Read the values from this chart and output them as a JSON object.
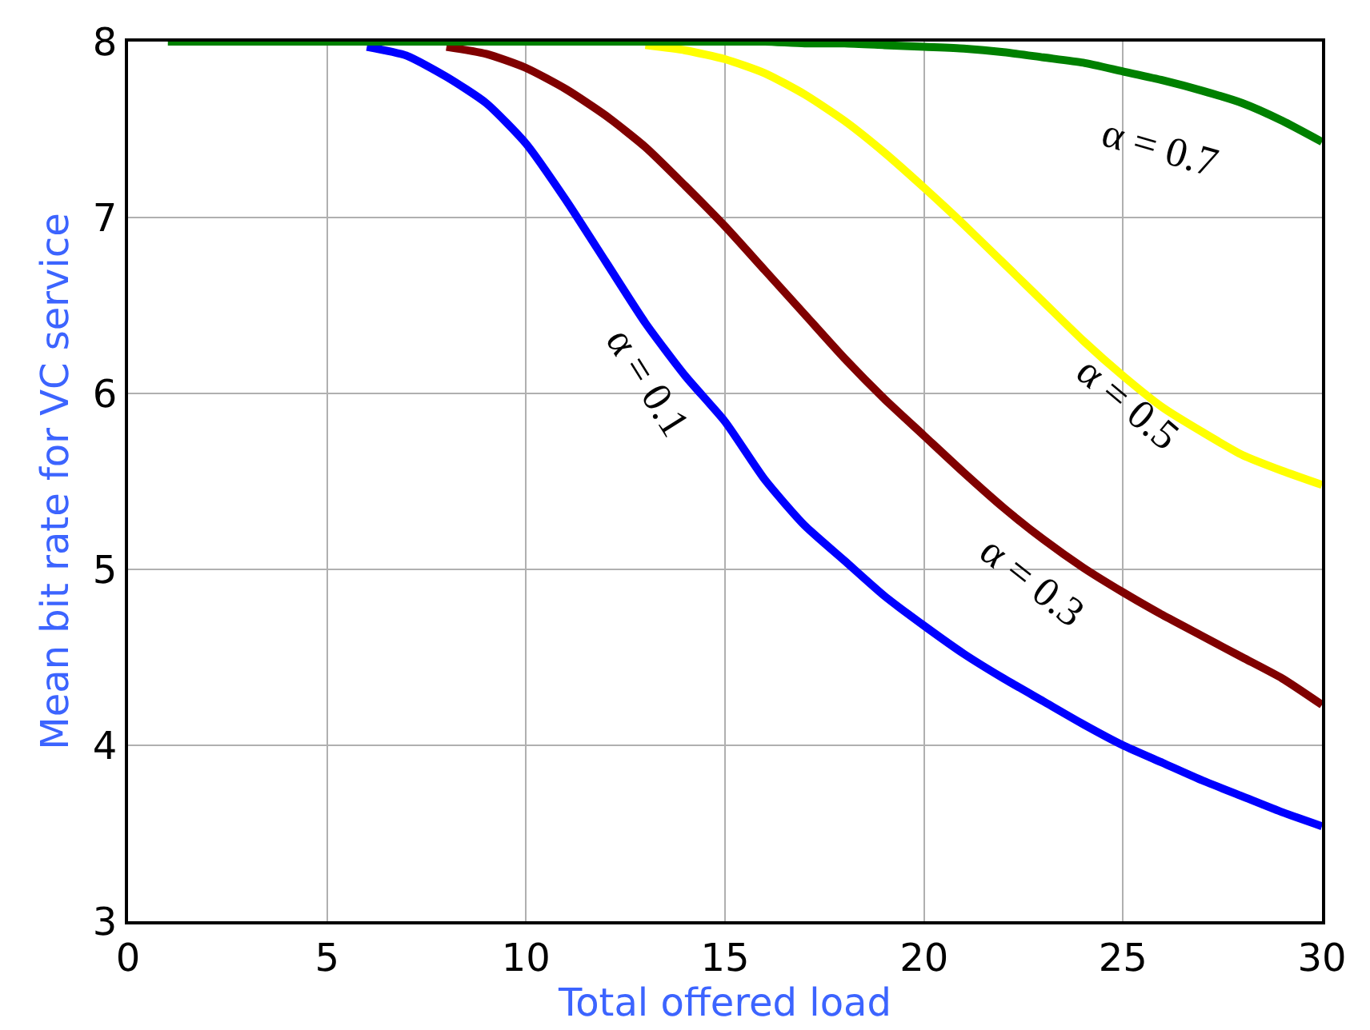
{
  "chart_data": {
    "type": "line",
    "xlabel": "Total offered load",
    "ylabel": "Mean bit rate for VC service",
    "x": [
      1,
      2,
      3,
      4,
      5,
      6,
      7,
      8,
      9,
      10,
      11,
      12,
      13,
      14,
      15,
      16,
      17,
      18,
      19,
      20,
      21,
      22,
      23,
      24,
      25,
      26,
      27,
      28,
      29,
      30
    ],
    "series": [
      {
        "color": "#0000ff",
        "values": [
          null,
          null,
          null,
          null,
          null,
          7.97,
          7.92,
          7.8,
          7.65,
          7.42,
          7.1,
          6.75,
          6.4,
          6.1,
          5.84,
          5.51,
          5.25,
          5.05,
          4.85,
          4.68,
          4.52,
          4.38,
          4.25,
          4.12,
          4.0,
          3.9,
          3.8,
          3.71,
          3.62,
          3.54
        ]
      },
      {
        "color": "#800000",
        "values": [
          null,
          null,
          null,
          null,
          null,
          null,
          null,
          7.97,
          7.93,
          7.85,
          7.73,
          7.58,
          7.4,
          7.18,
          6.95,
          6.7,
          6.45,
          6.2,
          5.97,
          5.76,
          5.55,
          5.35,
          5.17,
          5.01,
          4.87,
          4.74,
          4.62,
          4.5,
          4.38,
          4.23
        ]
      },
      {
        "color": "#ffff00",
        "values": [
          null,
          null,
          null,
          null,
          null,
          null,
          null,
          null,
          null,
          null,
          null,
          null,
          7.98,
          7.95,
          7.9,
          7.82,
          7.7,
          7.55,
          7.37,
          7.17,
          6.96,
          6.74,
          6.52,
          6.3,
          6.1,
          5.92,
          5.78,
          5.65,
          5.56,
          5.48
        ]
      },
      {
        "color": "#008000",
        "values": [
          8,
          8,
          8,
          8,
          8,
          8,
          8,
          8,
          8,
          8,
          8,
          8,
          8,
          8,
          8,
          8,
          7.99,
          7.99,
          7.98,
          7.97,
          7.96,
          7.94,
          7.91,
          7.88,
          7.83,
          7.78,
          7.72,
          7.65,
          7.55,
          7.43
        ]
      }
    ],
    "annotations": [
      "α = 0.7",
      "α = 0.5",
      "α = 0.3",
      "α = 0.1"
    ],
    "xlim": [
      0,
      30
    ],
    "xticks": [
      0,
      5,
      10,
      15,
      20,
      25,
      30
    ],
    "ylim": [
      3,
      8
    ],
    "yticks": [
      3,
      4,
      5,
      6,
      7,
      8
    ],
    "grid": true,
    "marker": "none",
    "line_style": "solid"
  }
}
